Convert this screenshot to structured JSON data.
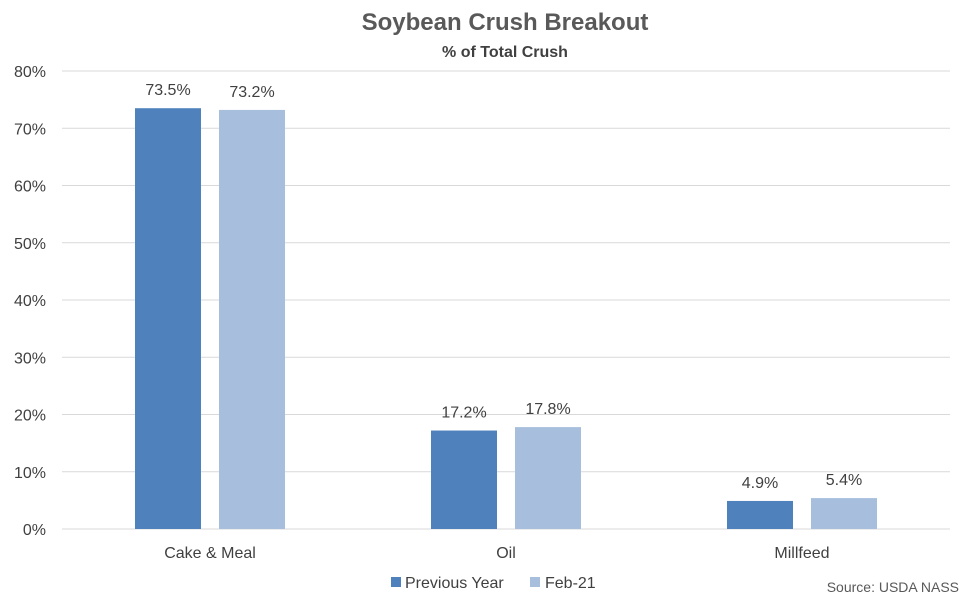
{
  "chart_data": {
    "type": "bar",
    "title": "Soybean Crush Breakout",
    "subtitle": "% of Total Crush",
    "categories": [
      "Cake & Meal",
      "Oil",
      "Millfeed"
    ],
    "series": [
      {
        "name": "Previous Year",
        "color": "#4f81bd",
        "values": [
          73.5,
          17.2,
          4.9
        ]
      },
      {
        "name": "Feb-21",
        "color": "#a7bfdd",
        "values": [
          73.2,
          17.8,
          5.4
        ]
      }
    ],
    "ylim": [
      0,
      80
    ],
    "ytick_labels": [
      "0%",
      "10%",
      "20%",
      "30%",
      "40%",
      "50%",
      "60%",
      "70%",
      "80%"
    ],
    "data_labels": [
      [
        "73.5%",
        "17.2%",
        "4.9%"
      ],
      [
        "73.2%",
        "17.8%",
        "5.4%"
      ]
    ],
    "grid": true,
    "legend_position": "bottom",
    "source": "Source: USDA NASS"
  }
}
